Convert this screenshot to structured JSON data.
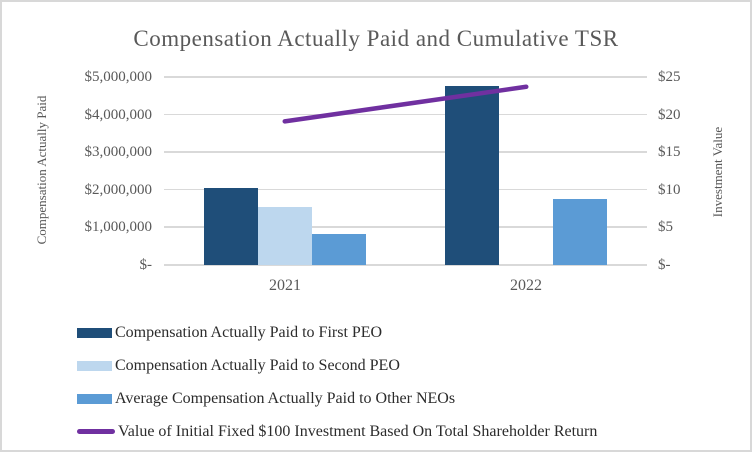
{
  "title": "Compensation Actually Paid and Cumulative TSR",
  "chart_data": {
    "type": "bar",
    "subtype": "grouped-bars-with-line-overlay",
    "categories": [
      "2021",
      "2022"
    ],
    "series": [
      {
        "id": "first-peo",
        "type": "bar",
        "axis": "left",
        "color": "#1F4E79",
        "name": "Compensation Actually Paid to First PEO",
        "values": [
          2050000,
          4750000
        ]
      },
      {
        "id": "second-peo",
        "type": "bar",
        "axis": "left",
        "color": "#BDD7EE",
        "name": "Compensation Actually Paid to Second PEO",
        "values": [
          1550000,
          null
        ]
      },
      {
        "id": "other-neos",
        "type": "bar",
        "axis": "left",
        "color": "#5B9BD5",
        "name": "Average Compensation Actually Paid to Other NEOs",
        "values": [
          820000,
          1750000
        ]
      },
      {
        "id": "tsr-line",
        "type": "line",
        "axis": "right",
        "color": "#7030A0",
        "name": "Value of Initial Fixed $100 Investment Based On Total Shareholder Return",
        "values": [
          19.1,
          23.7
        ]
      }
    ],
    "left_axis": {
      "label": "Compensation Actually Paid",
      "min": 0,
      "max": 5000000,
      "ticks": [
        "$5,000,000",
        "$4,000,000",
        "$3,000,000",
        "$2,000,000",
        "$1,000,000",
        "$-"
      ]
    },
    "right_axis": {
      "label": "Investment Value",
      "min": 0,
      "max": 25,
      "ticks": [
        "$25",
        "$20",
        "$15",
        "$10",
        "$5",
        "$-"
      ]
    },
    "grid": true,
    "legend_position": "bottom-left",
    "colors": {
      "gridline": "#d9d9d9",
      "axis_text": "#595959",
      "legend_text": "#2b2b2b",
      "background": "#ffffff",
      "border": "#d8d8d8"
    }
  }
}
